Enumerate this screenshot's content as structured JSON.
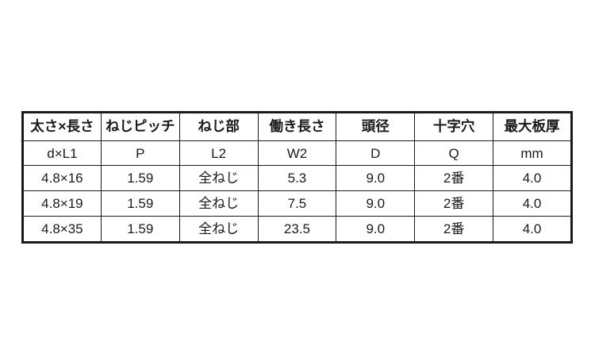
{
  "accent_colors": {
    "border": "#1a1a1a",
    "text": "#1a1a1a",
    "background": "#ffffff"
  },
  "table": {
    "headers": [
      "太さ×長さ",
      "ねじピッチ",
      "ねじ部",
      "働き長さ",
      "頭径",
      "十字穴",
      "最大板厚"
    ],
    "symbols": [
      "d×L1",
      "P",
      "L2",
      "W2",
      "D",
      "Q",
      "mm"
    ],
    "rows": [
      [
        "4.8×16",
        "1.59",
        "全ねじ",
        "5.3",
        "9.0",
        "2番",
        "4.0"
      ],
      [
        "4.8×19",
        "1.59",
        "全ねじ",
        "7.5",
        "9.0",
        "2番",
        "4.0"
      ],
      [
        "4.8×35",
        "1.59",
        "全ねじ",
        "23.5",
        "9.0",
        "2番",
        "4.0"
      ]
    ]
  }
}
